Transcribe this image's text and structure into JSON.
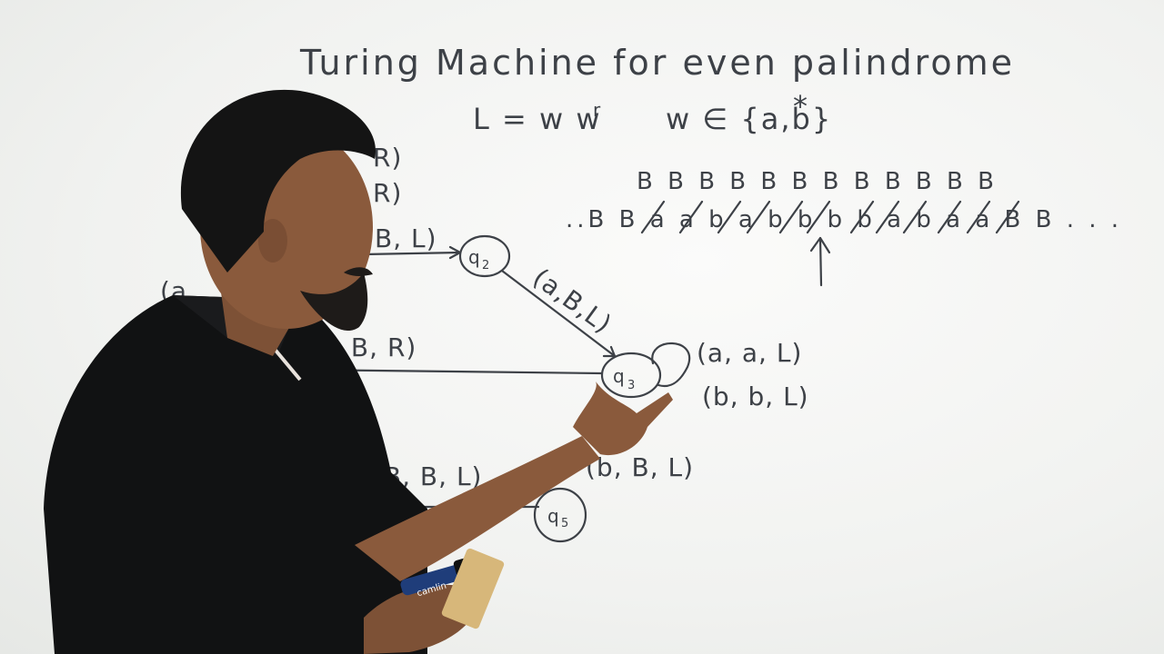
{
  "board": {
    "title": "Turing Machine for even palindrome",
    "language_lhs": "L = w w",
    "language_sup": "r",
    "language_rhs": "w ∈ {a,b}",
    "language_rhs_sup": "*"
  },
  "tape": {
    "overwrite_row": "B B B B B B  B B B  B B B",
    "symbols_row": "..B B a a b a b b  b b a b a a  B B . . .",
    "head_marker": "↑"
  },
  "diagram": {
    "states": [
      {
        "name": "q2",
        "label": "q",
        "sub": "2"
      },
      {
        "name": "q3",
        "label": "q",
        "sub": "3"
      },
      {
        "name": "q5",
        "label": "q",
        "sub": "5"
      }
    ],
    "transitions": {
      "top_right": "R)",
      "top_right2": "R)",
      "into_q2": "B, L)",
      "q2_to_q3": "(a,B,L)",
      "to_q3_left": "(B, B, R)",
      "q3_loop_a": "(a, a, L)",
      "q3_loop_b": "(b, b, L)",
      "bottom_left": "(B, B, L)",
      "bottom_right": "(b, B, L)",
      "left_edge": "(a"
    }
  },
  "marker": {
    "brand": "camlin"
  },
  "colors": {
    "board": "#f3f4f2",
    "ink": "#3d4147",
    "shirt": "#111213",
    "skin": "#8a5a3c",
    "hair": "#141414"
  }
}
